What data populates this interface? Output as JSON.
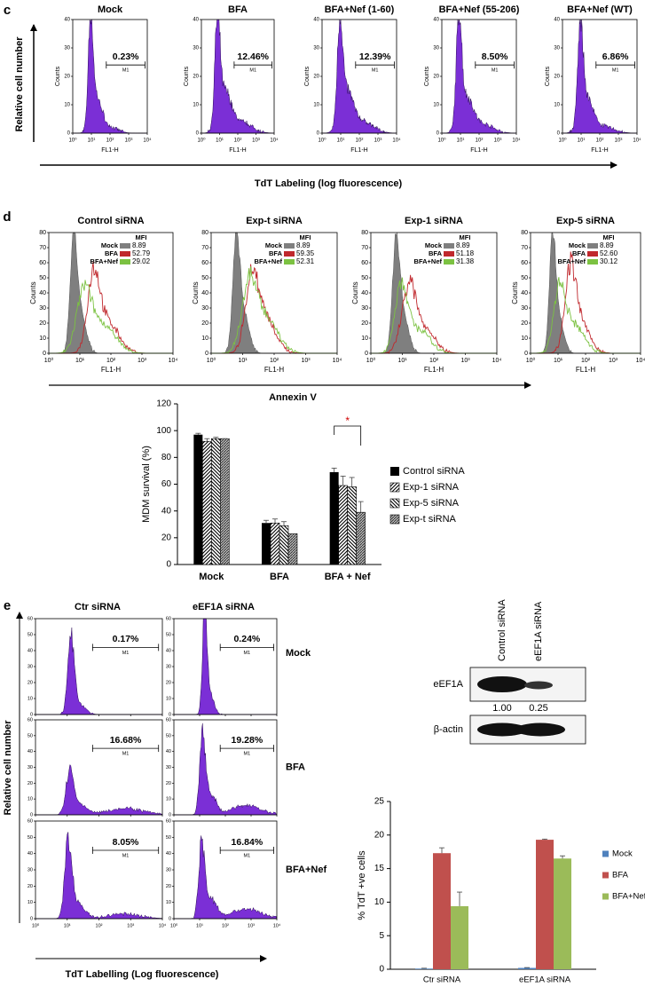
{
  "panel_c": {
    "label": "c",
    "y_title": "Relative cell number",
    "x_title": "TdT Labeling (log fluorescence)",
    "y_axis_label": "Counts",
    "x_axis_label": "FL1-H",
    "gate_name": "M1",
    "ylim": [
      0,
      40
    ],
    "yticks": [
      0,
      10,
      20,
      30,
      40
    ],
    "xlim": [
      1,
      10000
    ],
    "xticks": [
      {
        "value": 1,
        "label": "10⁰"
      },
      {
        "value": 10,
        "label": "10¹"
      },
      {
        "value": 100,
        "label": "10²"
      },
      {
        "value": 1000,
        "label": "10³"
      },
      {
        "value": 10000,
        "label": "10⁴"
      }
    ],
    "plots": [
      {
        "title": "Mock",
        "percent": "0.23%"
      },
      {
        "title": "BFA",
        "percent": "12.46%"
      },
      {
        "title": "BFA+Nef (1-60)",
        "percent": "12.39%"
      },
      {
        "title": "BFA+Nef (55-206)",
        "percent": "8.50%"
      },
      {
        "title": "BFA+Nef (WT)",
        "percent": "6.86%"
      }
    ]
  },
  "panel_d": {
    "label": "d",
    "x_title": "Annexin V",
    "y_axis_label": "Counts",
    "x_axis_label": "FL1-H",
    "ylim": [
      0,
      80
    ],
    "yticks": [
      0,
      10,
      20,
      30,
      40,
      50,
      60,
      70,
      80
    ],
    "xlim": [
      1,
      10000
    ],
    "xticks": [
      {
        "value": 1,
        "label": "10⁰"
      },
      {
        "value": 10,
        "label": "10¹"
      },
      {
        "value": 100,
        "label": "10²"
      },
      {
        "value": 1000,
        "label": "10³"
      },
      {
        "value": 10000,
        "label": "10⁴"
      }
    ],
    "legend_title": "MFI",
    "legend_names": [
      "Mock",
      "BFA",
      "BFA+Nef"
    ],
    "colors": [
      "#7f7f7f",
      "#c0282d",
      "#7cc242"
    ],
    "plots": [
      {
        "title": "Control siRNA",
        "mfi": [
          "8.89",
          "52.79",
          "29.02"
        ]
      },
      {
        "title": "Exp-t siRNA",
        "mfi": [
          "8.89",
          "59.35",
          "52.31"
        ]
      },
      {
        "title": "Exp-1 siRNA",
        "mfi": [
          "8.89",
          "51.18",
          "31.38"
        ]
      },
      {
        "title": "Exp-5 siRNA",
        "mfi": [
          "8.89",
          "52.60",
          "30.12"
        ]
      }
    ]
  },
  "panel_e": {
    "label": "e",
    "y_title": "Relative cell number",
    "x_title": "TdT Labelling (Log fluorescence)",
    "gate_name": "M1",
    "columns": [
      "Ctr siRNA",
      "eEF1A siRNA"
    ],
    "rows": [
      "Mock",
      "BFA",
      "BFA+Nef"
    ],
    "percents": [
      [
        "0.17%",
        "0.24%"
      ],
      [
        "16.68%",
        "19.28%"
      ],
      [
        "8.05%",
        "16.84%"
      ]
    ],
    "ylim": [
      0,
      60
    ],
    "yticks": [
      0,
      10,
      20,
      30,
      40,
      50,
      60
    ],
    "xlim": [
      1,
      10000
    ],
    "xticks": [
      {
        "value": 1,
        "label": "10⁰"
      },
      {
        "value": 10,
        "label": "10¹"
      },
      {
        "value": 100,
        "label": "10²"
      },
      {
        "value": 1000,
        "label": "10³"
      },
      {
        "value": 10000,
        "label": "10⁴"
      }
    ]
  },
  "western_blot": {
    "lanes": [
      "Control siRNA",
      "eEF1A siRNA"
    ],
    "proteins": [
      "eEF1A",
      "β-actin"
    ],
    "quantification": [
      "1.00",
      "0.25"
    ]
  },
  "chart_data": [
    {
      "type": "bar",
      "y_label": "MDM survival (%)",
      "categories": [
        "Mock",
        "BFA",
        "BFA + Nef"
      ],
      "significance": "*",
      "series": [
        {
          "name": "Control siRNA",
          "color": "#000000",
          "values": [
            97,
            31,
            69
          ],
          "errors": [
            1,
            2,
            3
          ]
        },
        {
          "name": "Exp-1 siRNA",
          "color": "#000000",
          "pattern": "hatch-up",
          "values": [
            92,
            31,
            59
          ],
          "errors": [
            2,
            3,
            7
          ]
        },
        {
          "name": "Exp-5 siRNA",
          "color": "#000000",
          "pattern": "hatch-down",
          "values": [
            94,
            29,
            58
          ],
          "errors": [
            1,
            3,
            7
          ]
        },
        {
          "name": "Exp-t siRNA",
          "color": "#555555",
          "pattern": "hatch-dense",
          "values": [
            94,
            23,
            39
          ],
          "errors": [
            0,
            0,
            8
          ]
        }
      ],
      "ylim": [
        0,
        120
      ],
      "yticks": [
        0,
        20,
        40,
        60,
        80,
        100,
        120
      ]
    },
    {
      "type": "bar",
      "y_label": "% TdT +ve cells",
      "categories": [
        "Ctr siRNA",
        "eEF1A siRNA"
      ],
      "series": [
        {
          "name": "Mock",
          "color": "#4f81bd",
          "values": [
            0.1,
            0.2
          ],
          "errors": [
            0.05,
            0.05
          ]
        },
        {
          "name": "BFA",
          "color": "#c0504d",
          "values": [
            17.3,
            19.3
          ],
          "errors": [
            0.8,
            0.1
          ]
        },
        {
          "name": "BFA+Nef",
          "color": "#9bbb59",
          "values": [
            9.4,
            16.5
          ],
          "errors": [
            2.1,
            0.4
          ]
        }
      ],
      "ylim": [
        0,
        25
      ],
      "yticks": [
        0,
        5,
        10,
        15,
        20,
        25
      ]
    }
  ]
}
